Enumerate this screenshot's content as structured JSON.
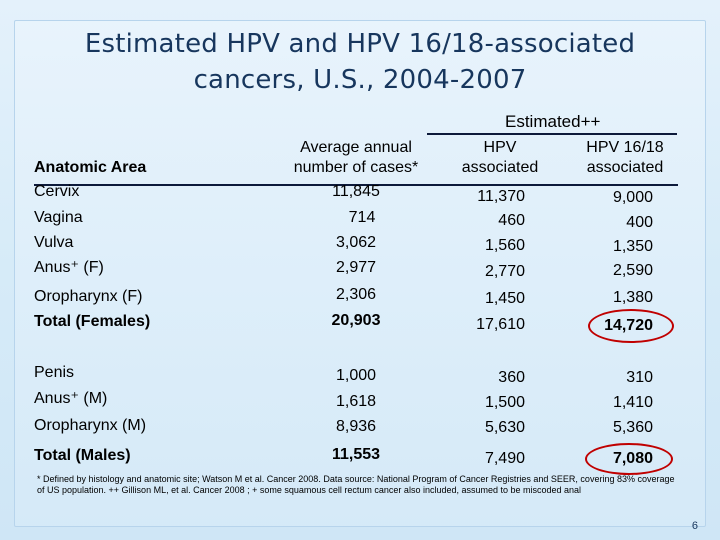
{
  "title_line1": "Estimated HPV and HPV 16/18-associated",
  "title_line2": "cancers,  U.S.,  2004-2007",
  "header": {
    "estimated": "Estimated++",
    "area": "Anatomic Area",
    "avg_line1": "Average annual",
    "avg_line2": "number of  cases*",
    "hpv_line1": "HPV",
    "hpv_line2": "associated",
    "hpv1618_line1": "HPV 16/18",
    "hpv1618_line2": "associated"
  },
  "rows": [
    {
      "area": "Cervix",
      "avg": "11,845",
      "hpv": "11,370",
      "hpv1618": "9,000"
    },
    {
      "area": "Vagina",
      "avg": "714",
      "hpv": "460",
      "hpv1618": "400"
    },
    {
      "area": "Vulva",
      "avg": "3,062",
      "hpv": "1,560",
      "hpv1618": "1,350"
    },
    {
      "area": "Anus⁺ (F)",
      "avg": "2,977",
      "hpv": "2,770",
      "hpv1618": "2,590"
    },
    {
      "area": "Oropharynx (F)",
      "avg": "2,306",
      "hpv": "1,450",
      "hpv1618": "1,380"
    },
    {
      "area": "Total (Females)",
      "avg": "20,903",
      "hpv": "17,610",
      "hpv1618": "14,720"
    },
    {
      "area": "Penis",
      "avg": "1,000",
      "hpv": "360",
      "hpv1618": "310"
    },
    {
      "area": "Anus⁺ (M)",
      "avg": "1,618",
      "hpv": "1,500",
      "hpv1618": "1,410"
    },
    {
      "area": "Oropharynx (M)",
      "avg": "8,936",
      "hpv": "5,630",
      "hpv1618": "5,360"
    },
    {
      "area": "Total (Males)",
      "avg": "11,553",
      "hpv": "7,490",
      "hpv1618": "7,080"
    }
  ],
  "footnote": "* Defined by histology and anatomic site; Watson M et al. Cancer 2008. Data source: National Program of Cancer Registries and SEER, covering 83% coverage of  US population.  ++ Gillison ML, et al.  Cancer  2008 ;  + some squamous cell rectum cancer also included, assumed to be miscoded anal",
  "page_number": "6",
  "colors": {
    "title": "#17365d",
    "highlight": "#c00000"
  }
}
